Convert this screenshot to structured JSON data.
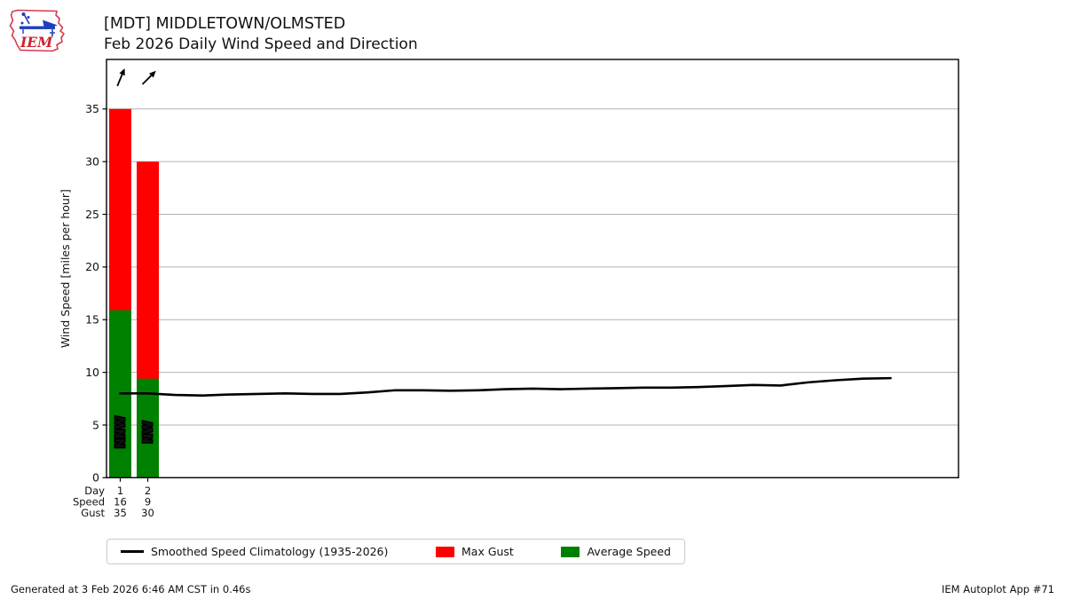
{
  "header": {
    "title_line1": "[MDT] MIDDLETOWN/OLMSTED",
    "title_line2": "Feb 2026 Daily Wind Speed and Direction"
  },
  "logo": {
    "text": "IEM"
  },
  "chart_data": {
    "type": "bar",
    "title": "[MDT] MIDDLETOWN/OLMSTED",
    "subtitle": "Feb 2026 Daily Wind Speed and Direction",
    "xlabel": "",
    "ylabel": "Wind Speed [miles per hour]",
    "ylim": [
      0,
      39.7
    ],
    "yticks": [
      0,
      5,
      10,
      15,
      20,
      25,
      30,
      35
    ],
    "grid": "horizontal",
    "x_rows": {
      "day_label": "Day",
      "speed_label": "Speed",
      "gust_label": "Gust"
    },
    "days": [
      1,
      2
    ],
    "speed_labels": [
      "16",
      "9"
    ],
    "gust_labels": [
      "35",
      "30"
    ],
    "avg_speed_values": [
      15.9,
      9.4
    ],
    "max_gust_values": [
      35,
      30
    ],
    "directions": [
      "NNW",
      "NW"
    ],
    "direction_degrees": [
      337.5,
      315
    ],
    "climatology": {
      "name": "Smoothed Speed Climatology (1935-2026)",
      "days": [
        1,
        2,
        3,
        4,
        5,
        6,
        7,
        8,
        9,
        10,
        11,
        12,
        13,
        14,
        15,
        16,
        17,
        18,
        19,
        20,
        21,
        22,
        23,
        24,
        25,
        26,
        27,
        28,
        29
      ],
      "values": [
        8.0,
        8.0,
        7.85,
        7.8,
        7.9,
        7.95,
        8.0,
        7.95,
        7.95,
        8.1,
        8.3,
        8.3,
        8.25,
        8.3,
        8.4,
        8.45,
        8.4,
        8.45,
        8.5,
        8.55,
        8.55,
        8.6,
        8.7,
        8.8,
        8.75,
        9.05,
        9.25,
        9.4,
        9.45
      ]
    },
    "colors": {
      "max_gust": "#ff0000",
      "avg_speed": "#008000",
      "climatology": "#000000",
      "grid": "#b2b2b2",
      "spine": "#000000"
    }
  },
  "legend": {
    "items": [
      {
        "label": "Smoothed Speed Climatology (1935-2026)",
        "type": "line",
        "color": "#000000"
      },
      {
        "label": "Max Gust",
        "type": "patch",
        "color": "#ff0000"
      },
      {
        "label": "Average Speed",
        "type": "patch",
        "color": "#008000"
      }
    ]
  },
  "footer": {
    "left": "Generated at 3 Feb 2026 6:46 AM CST in 0.46s",
    "right": "IEM Autoplot App #71"
  }
}
